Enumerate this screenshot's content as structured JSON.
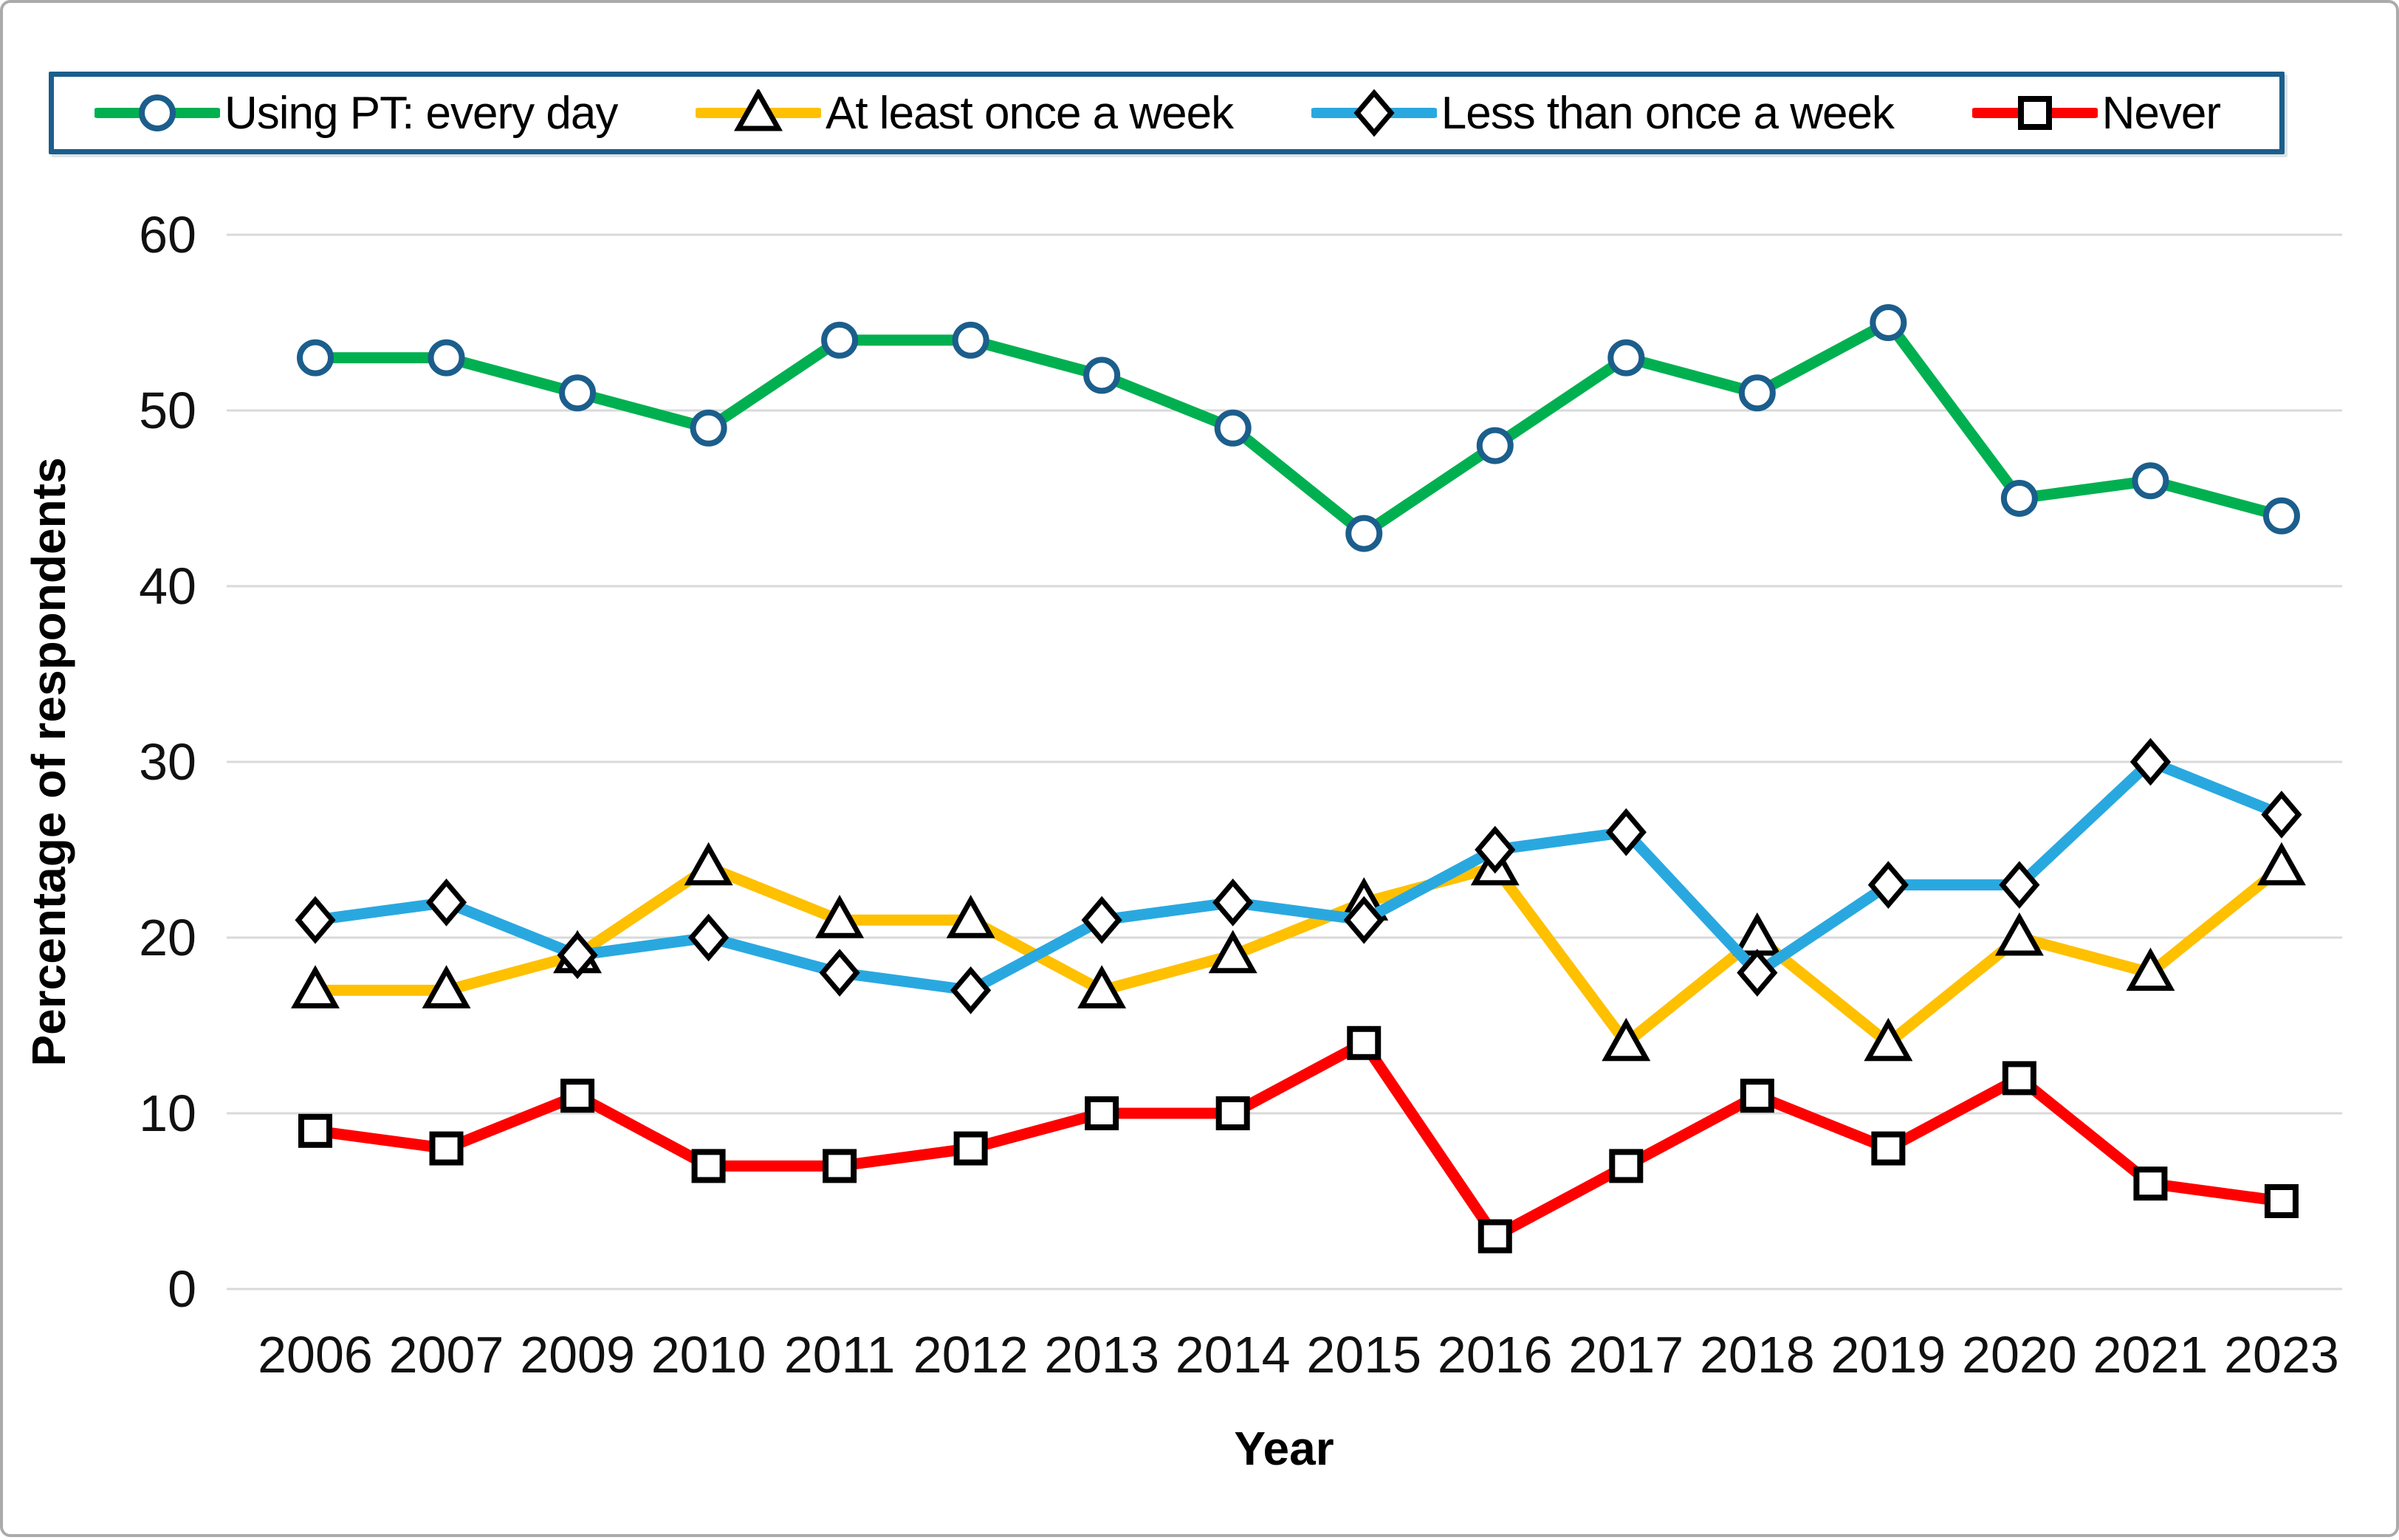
{
  "chart_data": {
    "type": "line",
    "title": "",
    "xlabel": "Year",
    "ylabel": "Percentage of respondents",
    "x_categories": [
      "2006",
      "2007",
      "2009",
      "2010",
      "2011",
      "2012",
      "2013",
      "2014",
      "2015",
      "2016",
      "2017",
      "2018",
      "2019",
      "2020",
      "2021",
      "2023"
    ],
    "y_ticks": [
      0,
      10,
      20,
      30,
      40,
      50,
      60
    ],
    "ylim": [
      0,
      60
    ],
    "grid": "horizontal",
    "legend_position": "top",
    "grid_color": "#D9D9D9",
    "tick_label_color": "#111111",
    "series": [
      {
        "name": "Using PT: every day",
        "color": "#00B050",
        "marker": "circle",
        "marker_stroke": "#1B5E8C",
        "values": [
          53,
          53,
          51,
          49,
          54,
          54,
          52,
          49,
          43,
          48,
          53,
          51,
          55,
          45,
          46,
          44
        ]
      },
      {
        "name": "At least once a week",
        "color": "#FFC000",
        "marker": "triangle",
        "marker_stroke": "#000000",
        "values": [
          17,
          17,
          19,
          24,
          21,
          21,
          17,
          19,
          22,
          24,
          14,
          20,
          14,
          20,
          18,
          24
        ]
      },
      {
        "name": "Less than once a week",
        "color": "#29A8E0",
        "marker": "diamond",
        "marker_stroke": "#000000",
        "values": [
          21,
          22,
          19,
          20,
          18,
          17,
          21,
          22,
          21,
          25,
          26,
          18,
          23,
          23,
          30,
          27
        ]
      },
      {
        "name": "Never",
        "color": "#FF0000",
        "marker": "square",
        "marker_stroke": "#000000",
        "values": [
          9,
          8,
          11,
          7,
          7,
          8,
          10,
          10,
          14,
          3,
          7,
          11,
          8,
          12,
          6,
          5
        ]
      }
    ]
  },
  "frame": {
    "outer_border_color": "#ABABAB",
    "legend_border_color": "#1B5E8C",
    "background": "#FFFFFF"
  }
}
